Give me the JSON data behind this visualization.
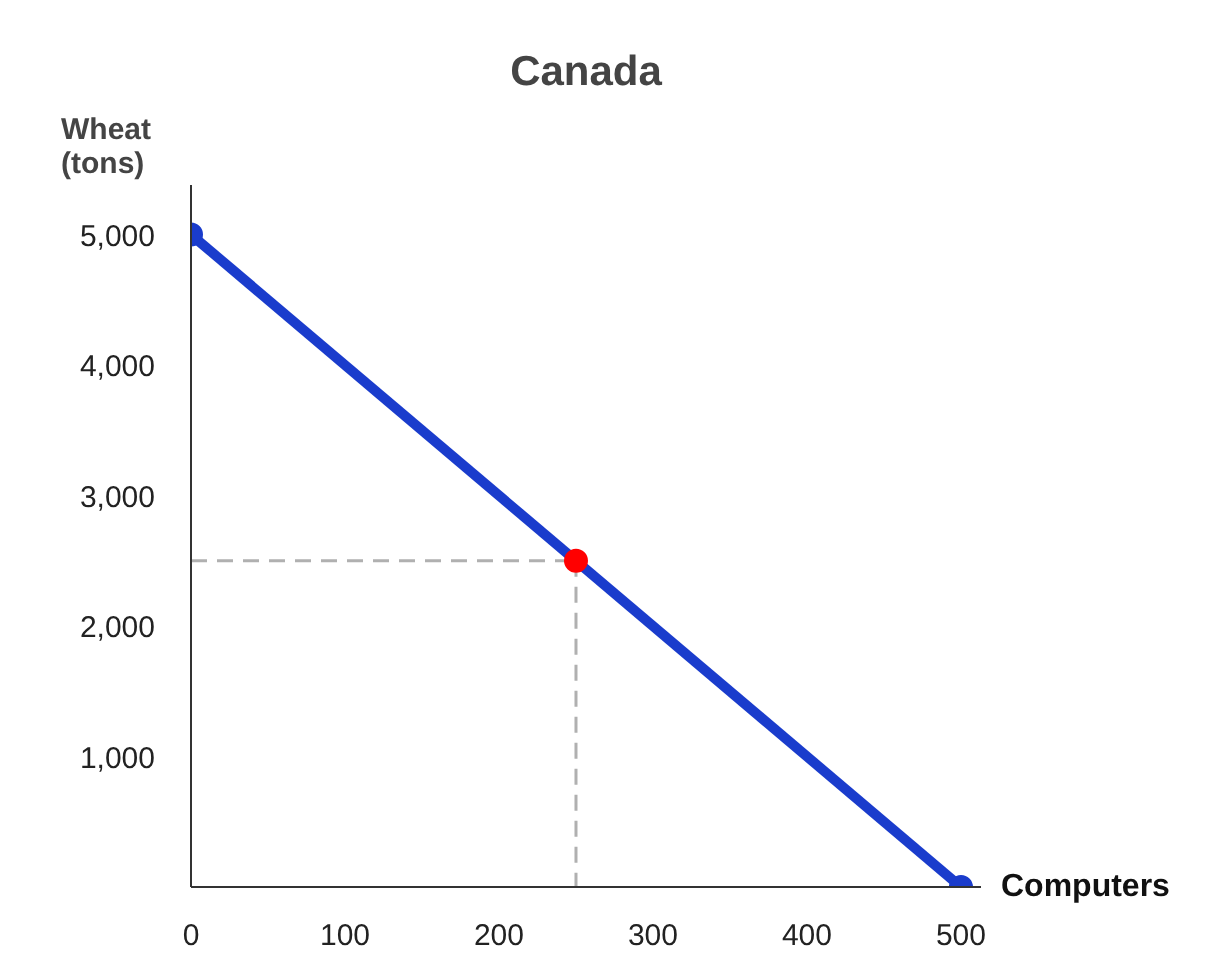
{
  "chart_data": {
    "type": "line",
    "title": "Canada",
    "xlabel": "Computers",
    "ylabel": "Wheat\n(tons)",
    "xlim": [
      0,
      513
    ],
    "ylim": [
      0,
      5380
    ],
    "xticks": [
      {
        "value": 0,
        "label": "0"
      },
      100,
      200,
      300,
      400,
      500
    ],
    "yticks": [
      {
        "value": 1000,
        "label": "1,000"
      },
      {
        "value": 2000,
        "label": "2,000"
      },
      {
        "value": 3000,
        "label": "3,000"
      },
      {
        "value": 4000,
        "label": "4,000"
      },
      {
        "value": 5000,
        "label": "5,000"
      }
    ],
    "grid": false,
    "series": [
      {
        "color": "#1a3ccc",
        "x": [
          0,
          500
        ],
        "values": [
          5000,
          0
        ],
        "marker": "circle",
        "line_style": "solid"
      },
      {
        "color": "#b0b0b0",
        "x": [
          0,
          250
        ],
        "values": [
          2500,
          2500
        ],
        "marker": "none",
        "line_style": "dashed"
      },
      {
        "color": "#b0b0b0",
        "x": [
          250,
          250
        ],
        "values": [
          2500,
          0
        ],
        "marker": "none",
        "line_style": "dashed"
      },
      {
        "type": "scatter",
        "color": "#ff0000",
        "x": [
          250
        ],
        "values": [
          2500
        ],
        "marker": "circle"
      }
    ]
  }
}
